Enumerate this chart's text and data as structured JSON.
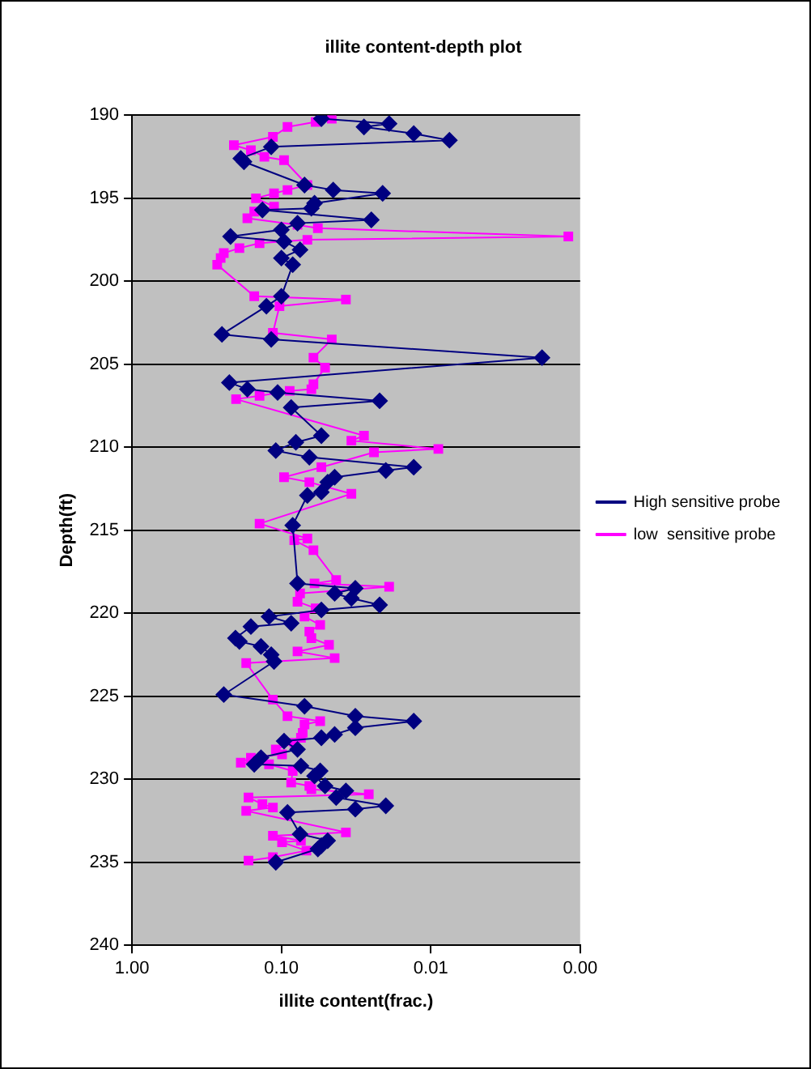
{
  "chart_data": {
    "type": "line",
    "title": "illite content-depth plot",
    "xlabel": "illite content(frac.)",
    "ylabel": "Depth(ft)",
    "log": "x",
    "xlim": [
      1,
      0.001
    ],
    "xticks": [
      {
        "value": 1,
        "label": "1.00"
      },
      {
        "value": 0.1,
        "label": "0.10"
      },
      {
        "value": 0.01,
        "label": "0.01"
      },
      {
        "value": 0.001,
        "label": "0.00"
      }
    ],
    "ylim": [
      240,
      190
    ],
    "yticks": [
      190,
      195,
      200,
      205,
      210,
      215,
      220,
      225,
      230,
      235,
      240
    ],
    "grid": "y",
    "legend": "right",
    "series": [
      {
        "name": "High sensitive probe",
        "color": "#000080",
        "marker": "diamond",
        "x": [
          0.054,
          0.019,
          0.028,
          0.013,
          0.0075,
          0.117,
          0.187,
          0.178,
          0.07,
          0.045,
          0.021,
          0.06,
          0.063,
          0.134,
          0.025,
          0.078,
          0.1,
          0.219,
          0.096,
          0.075,
          0.1,
          0.084,
          0.1,
          0.126,
          0.25,
          0.117,
          0.0018,
          0.223,
          0.169,
          0.106,
          0.022,
          0.086,
          0.054,
          0.08,
          0.109,
          0.065,
          0.013,
          0.02,
          0.044,
          0.049,
          0.054,
          0.067,
          0.084,
          0.078,
          0.032,
          0.044,
          0.034,
          0.022,
          0.054,
          0.121,
          0.086,
          0.16,
          0.203,
          0.191,
          0.137,
          0.117,
          0.112,
          0.243,
          0.07,
          0.032,
          0.013,
          0.032,
          0.044,
          0.054,
          0.096,
          0.078,
          0.137,
          0.152,
          0.074,
          0.055,
          0.06,
          0.051,
          0.037,
          0.043,
          0.02,
          0.032,
          0.091,
          0.075,
          0.049,
          0.054,
          0.057,
          0.109
        ],
        "values": [
          190.2,
          190.5,
          190.7,
          191.1,
          191.5,
          191.9,
          192.6,
          192.8,
          194.2,
          194.5,
          194.7,
          195.3,
          195.6,
          195.7,
          196.3,
          196.5,
          196.9,
          197.3,
          197.6,
          198.1,
          198.6,
          199,
          200.9,
          201.5,
          203.2,
          203.5,
          204.6,
          206.1,
          206.5,
          206.7,
          207.2,
          207.6,
          209.3,
          209.7,
          210.2,
          210.6,
          211.2,
          211.4,
          211.8,
          212.1,
          212.7,
          212.9,
          214.7,
          218.2,
          218.5,
          218.8,
          219.1,
          219.5,
          219.8,
          220.2,
          220.6,
          220.8,
          221.5,
          221.7,
          222,
          222.5,
          222.9,
          224.9,
          225.6,
          226.2,
          226.5,
          226.9,
          227.3,
          227.5,
          227.7,
          228.2,
          228.7,
          229.1,
          229.2,
          229.5,
          229.8,
          230.4,
          230.7,
          231.1,
          231.6,
          231.8,
          232,
          233.3,
          233.7,
          234,
          234.2,
          235
        ]
      },
      {
        "name": "low  sensitive probe",
        "color": "#ff00ff",
        "marker": "square",
        "x": [
          0.046,
          0.059,
          0.091,
          0.114,
          0.208,
          0.16,
          0.13,
          0.096,
          0.067,
          0.091,
          0.112,
          0.148,
          0.112,
          0.152,
          0.169,
          0.078,
          0.057,
          0.0012,
          0.067,
          0.14,
          0.191,
          0.243,
          0.255,
          0.269,
          0.152,
          0.037,
          0.103,
          0.114,
          0.046,
          0.061,
          0.051,
          0.061,
          0.063,
          0.088,
          0.14,
          0.201,
          0.028,
          0.034,
          0.0089,
          0.024,
          0.054,
          0.096,
          0.065,
          0.034,
          0.14,
          0.067,
          0.082,
          0.061,
          0.043,
          0.06,
          0.019,
          0.075,
          0.078,
          0.059,
          0.07,
          0.055,
          0.065,
          0.063,
          0.048,
          0.078,
          0.044,
          0.172,
          0.114,
          0.091,
          0.055,
          0.07,
          0.072,
          0.074,
          0.082,
          0.109,
          0.099,
          0.16,
          0.187,
          0.121,
          0.084,
          0.086,
          0.065,
          0.063,
          0.026,
          0.166,
          0.134,
          0.114,
          0.172,
          0.037,
          0.114,
          0.074,
          0.099,
          0.068,
          0.114,
          0.166
        ],
        "values": [
          190.2,
          190.4,
          190.7,
          191.3,
          191.8,
          192.1,
          192.5,
          192.7,
          194.2,
          194.5,
          194.7,
          195,
          195.5,
          195.8,
          196.2,
          196.6,
          196.8,
          197.3,
          197.5,
          197.7,
          198,
          198.3,
          198.6,
          199,
          200.9,
          201.1,
          201.5,
          203.1,
          203.5,
          204.6,
          205.2,
          206.2,
          206.5,
          206.6,
          206.9,
          207.1,
          209.3,
          209.6,
          210.1,
          210.3,
          211.2,
          211.8,
          212.1,
          212.8,
          214.6,
          215.5,
          215.6,
          216.2,
          218,
          218.2,
          218.4,
          218.8,
          219.3,
          219.7,
          220.2,
          220.7,
          221.1,
          221.5,
          221.9,
          222.3,
          222.7,
          223,
          225.2,
          226.2,
          226.5,
          226.7,
          227.2,
          227.5,
          227.8,
          228.2,
          228.5,
          228.7,
          229,
          229.1,
          229.5,
          230.2,
          230.4,
          230.6,
          230.9,
          231.1,
          231.5,
          231.7,
          231.9,
          233.2,
          233.4,
          233.7,
          233.8,
          234.3,
          234.7,
          234.9
        ]
      }
    ]
  }
}
